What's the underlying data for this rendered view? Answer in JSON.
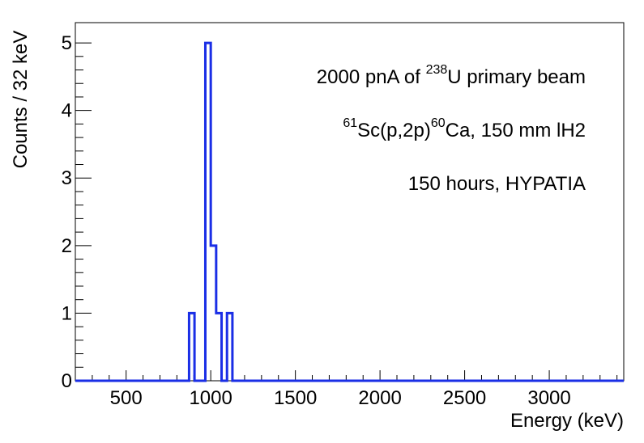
{
  "chart_data": {
    "type": "histogram",
    "title": "",
    "xlabel": "Energy (keV)",
    "ylabel": "Counts / 32 keV",
    "xlim": [
      200,
      3440
    ],
    "ylim": [
      0,
      5.3
    ],
    "bin_width": 32,
    "x_ticks": [
      500,
      1000,
      1500,
      2000,
      2500,
      3000
    ],
    "x_tick_labels": [
      "500",
      "1000",
      "1500",
      "2000",
      "2500",
      "3000"
    ],
    "y_ticks": [
      0,
      1,
      2,
      3,
      4,
      5
    ],
    "y_tick_labels": [
      "0",
      "1",
      "2",
      "3",
      "4",
      "5"
    ],
    "series": [
      {
        "name": "counts",
        "color": "#1a2ee6",
        "bins": [
          {
            "low": 872,
            "high": 904,
            "count": 1
          },
          {
            "low": 904,
            "high": 936,
            "count": 0
          },
          {
            "low": 936,
            "high": 968,
            "count": 0
          },
          {
            "low": 968,
            "high": 1000,
            "count": 5
          },
          {
            "low": 1000,
            "high": 1032,
            "count": 2
          },
          {
            "low": 1032,
            "high": 1064,
            "count": 1
          },
          {
            "low": 1064,
            "high": 1096,
            "count": 0
          },
          {
            "low": 1096,
            "high": 1128,
            "count": 1
          }
        ]
      }
    ],
    "annotations": {
      "line1": {
        "prefix": "2000 pnA of ",
        "sup": "238",
        "suffix": "U primary beam"
      },
      "line2": {
        "sup1": "61",
        "mid": "Sc(p,2p)",
        "sup2": "60",
        "suffix": "Ca, 150 mm lH2"
      },
      "line3": "150 hours, HYPATIA"
    }
  }
}
